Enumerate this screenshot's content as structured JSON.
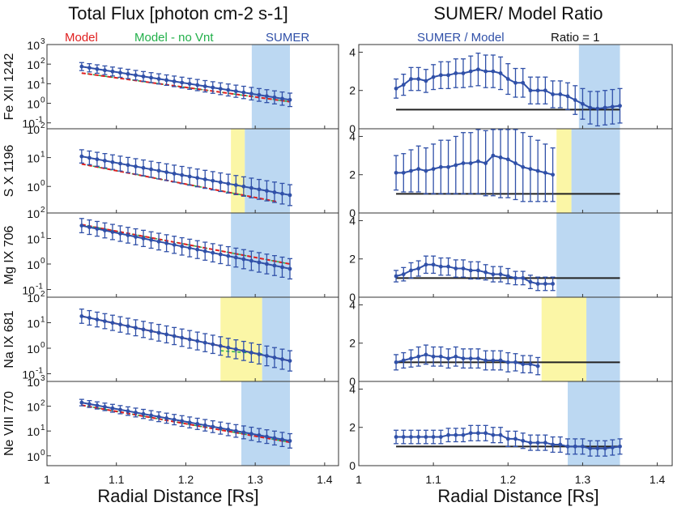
{
  "titles": {
    "left": "Total Flux [photon cm-2 s-1]",
    "right": "SUMER/ Model Ratio"
  },
  "legend_left": {
    "model": "Model",
    "model_no_vnt": "Model - no Vnt",
    "sumer": "SUMER"
  },
  "legend_right": {
    "sumer_model": "SUMER / Model",
    "ratio1": "Ratio = 1"
  },
  "xaxis": {
    "label": "Radial Distance [Rs]",
    "ticks": [
      "1",
      "1.1",
      "1.2",
      "1.3",
      "1.4"
    ],
    "range": [
      1.0,
      1.42
    ]
  },
  "colors": {
    "model": "#e02020",
    "model_no_vnt": "#22b04a",
    "sumer": "#3050a8",
    "band_blue": "#bcd8f2",
    "band_yellow": "#fbf6a6",
    "ratio_line": "#222222"
  },
  "chart_data": [
    {
      "type": "line",
      "panel": "flux",
      "ion": "Fe XII 1242",
      "yscale": "log",
      "ylim": [
        0.05,
        1000
      ],
      "y_ticks": [
        "10^3",
        "10^2",
        "10^1",
        "10^0",
        "10^-1"
      ],
      "bands": [
        {
          "color": "blue",
          "x": [
            1.295,
            1.35
          ]
        }
      ],
      "model": {
        "x": [
          1.05,
          1.35
        ],
        "y": [
          35,
          1.2
        ]
      },
      "model_no_vnt": {
        "x": [
          1.05,
          1.35
        ],
        "y": [
          35,
          1.2
        ]
      },
      "sumer": {
        "x0": 1.05,
        "x1": 1.35,
        "y0": 75,
        "y1": 1.5,
        "err_factor": 1.6,
        "n": 28
      }
    },
    {
      "type": "line",
      "panel": "ratio",
      "ion": "Fe XII 1242",
      "ylim": [
        0,
        4.4
      ],
      "y_ticks": [
        "4",
        "2",
        "0"
      ],
      "bands": [
        {
          "color": "blue",
          "x": [
            1.295,
            1.35
          ]
        }
      ],
      "ratio_line": {
        "x": [
          1.05,
          1.35
        ],
        "y": 1
      },
      "x": [
        1.05,
        1.06,
        1.07,
        1.08,
        1.09,
        1.1,
        1.11,
        1.12,
        1.13,
        1.14,
        1.15,
        1.16,
        1.17,
        1.18,
        1.19,
        1.2,
        1.21,
        1.22,
        1.23,
        1.24,
        1.25,
        1.26,
        1.27,
        1.28,
        1.29,
        1.3,
        1.31,
        1.32,
        1.33,
        1.34,
        1.35
      ],
      "y": [
        2.1,
        2.3,
        2.6,
        2.6,
        2.5,
        2.7,
        2.8,
        2.8,
        2.9,
        2.9,
        3.0,
        3.1,
        3.0,
        3.0,
        2.9,
        2.6,
        2.4,
        2.4,
        2.0,
        2.0,
        2.0,
        1.8,
        1.8,
        1.7,
        1.5,
        1.3,
        1.1,
        1.05,
        1.1,
        1.15,
        1.2
      ],
      "err": [
        0.5,
        0.55,
        0.6,
        0.6,
        0.6,
        0.65,
        0.7,
        0.7,
        0.75,
        0.75,
        0.8,
        0.85,
        0.85,
        0.85,
        0.85,
        0.8,
        0.75,
        0.75,
        0.7,
        0.7,
        0.7,
        0.7,
        0.7,
        0.7,
        0.75,
        0.8,
        0.85,
        0.9,
        0.9,
        0.9,
        0.9
      ]
    },
    {
      "type": "line",
      "panel": "flux",
      "ion": "S X 1196",
      "yscale": "log",
      "ylim": [
        0.12,
        100
      ],
      "y_ticks": [
        "10^2",
        "10^1",
        "10^0",
        "10^-1"
      ],
      "bands": [
        {
          "color": "yellow",
          "x": [
            1.265,
            1.285
          ]
        },
        {
          "color": "blue",
          "x": [
            1.285,
            1.35
          ]
        }
      ],
      "model": {
        "x": [
          1.05,
          1.33
        ],
        "y": [
          6,
          0.3
        ]
      },
      "model_no_vnt": {
        "x": [
          1.05,
          1.33
        ],
        "y": [
          6,
          0.3
        ]
      },
      "sumer": {
        "x0": 1.05,
        "x1": 1.35,
        "y0": 11,
        "y1": 0.5,
        "err_factor": 1.7,
        "n": 28
      }
    },
    {
      "type": "line",
      "panel": "ratio",
      "ion": "S X 1196",
      "ylim": [
        0,
        4.4
      ],
      "y_ticks": [
        "4",
        "2",
        "0"
      ],
      "bands": [
        {
          "color": "yellow",
          "x": [
            1.265,
            1.285
          ]
        },
        {
          "color": "blue",
          "x": [
            1.285,
            1.35
          ]
        }
      ],
      "ratio_line": {
        "x": [
          1.05,
          1.35
        ],
        "y": 1
      },
      "x": [
        1.05,
        1.06,
        1.07,
        1.08,
        1.09,
        1.1,
        1.11,
        1.12,
        1.13,
        1.14,
        1.15,
        1.16,
        1.17,
        1.18,
        1.19,
        1.2,
        1.21,
        1.22,
        1.23,
        1.24,
        1.25,
        1.26
      ],
      "y": [
        2.1,
        2.1,
        2.2,
        2.3,
        2.2,
        2.3,
        2.4,
        2.4,
        2.5,
        2.6,
        2.6,
        2.7,
        2.6,
        3.0,
        2.9,
        2.8,
        2.6,
        2.4,
        2.3,
        2.2,
        2.1,
        2.0
      ],
      "err": [
        0.9,
        1.0,
        1.1,
        1.2,
        1.2,
        1.3,
        1.4,
        1.4,
        1.5,
        1.6,
        1.6,
        1.7,
        1.7,
        2.1,
        2.1,
        2.0,
        1.9,
        1.8,
        1.7,
        1.6,
        1.5,
        1.4
      ]
    },
    {
      "type": "line",
      "panel": "flux",
      "ion": "Mg IX 706",
      "yscale": "log",
      "ylim": [
        0.05,
        100
      ],
      "y_ticks": [
        "10^2",
        "10^1",
        "10^0",
        "10^-1"
      ],
      "bands": [
        {
          "color": "blue",
          "x": [
            1.265,
            1.35
          ]
        }
      ],
      "model": {
        "x": [
          1.05,
          1.35
        ],
        "y": [
          35,
          1.0
        ]
      },
      "model_no_vnt": {
        "x": [
          1.05,
          1.35
        ],
        "y": [
          35,
          1.0
        ]
      },
      "sumer": {
        "x0": 1.05,
        "x1": 1.35,
        "y0": 32,
        "y1": 0.65,
        "err_factor": 1.9,
        "n": 28
      }
    },
    {
      "type": "line",
      "panel": "ratio",
      "ion": "Mg IX 706",
      "ylim": [
        0,
        4.4
      ],
      "y_ticks": [
        "4",
        "2",
        "0"
      ],
      "bands": [
        {
          "color": "blue",
          "x": [
            1.265,
            1.35
          ]
        }
      ],
      "ratio_line": {
        "x": [
          1.05,
          1.35
        ],
        "y": 1
      },
      "x": [
        1.05,
        1.06,
        1.07,
        1.08,
        1.09,
        1.1,
        1.11,
        1.12,
        1.13,
        1.14,
        1.15,
        1.16,
        1.17,
        1.18,
        1.19,
        1.2,
        1.21,
        1.22,
        1.23,
        1.24,
        1.25,
        1.26
      ],
      "y": [
        1.1,
        1.2,
        1.4,
        1.5,
        1.7,
        1.7,
        1.6,
        1.6,
        1.5,
        1.5,
        1.4,
        1.4,
        1.3,
        1.2,
        1.2,
        1.1,
        1.0,
        1.0,
        0.8,
        0.7,
        0.7,
        0.7
      ],
      "err": [
        0.3,
        0.35,
        0.4,
        0.4,
        0.45,
        0.45,
        0.45,
        0.45,
        0.45,
        0.45,
        0.45,
        0.45,
        0.4,
        0.4,
        0.4,
        0.4,
        0.35,
        0.35,
        0.35,
        0.35,
        0.35,
        0.35
      ]
    },
    {
      "type": "line",
      "panel": "flux",
      "ion": "Na IX 681",
      "yscale": "log",
      "ylim": [
        0.05,
        100
      ],
      "y_ticks": [
        "10^2",
        "10^1",
        "10^0",
        "10^-1"
      ],
      "bands": [
        {
          "color": "yellow",
          "x": [
            1.25,
            1.31
          ]
        },
        {
          "color": "blue",
          "x": [
            1.31,
            1.35
          ]
        }
      ],
      "model": {
        "x": [
          1.05,
          1.35
        ],
        "y": [
          18,
          0.32
        ]
      },
      "model_no_vnt": {
        "x": [
          1.25,
          1.31
        ],
        "y": [
          0.8,
          0.6
        ]
      },
      "sumer": {
        "x0": 1.05,
        "x1": 1.35,
        "y0": 18,
        "y1": 0.32,
        "err_factor": 1.9,
        "n": 28
      }
    },
    {
      "type": "line",
      "panel": "ratio",
      "ion": "Na IX 681",
      "ylim": [
        0,
        4.4
      ],
      "y_ticks": [
        "4",
        "2",
        "0"
      ],
      "bands": [
        {
          "color": "yellow",
          "x": [
            1.245,
            1.305
          ]
        },
        {
          "color": "blue",
          "x": [
            1.305,
            1.35
          ]
        }
      ],
      "ratio_line": {
        "x": [
          1.05,
          1.35
        ],
        "y": 1
      },
      "x": [
        1.05,
        1.06,
        1.07,
        1.08,
        1.09,
        1.1,
        1.11,
        1.12,
        1.13,
        1.14,
        1.15,
        1.16,
        1.17,
        1.18,
        1.19,
        1.2,
        1.21,
        1.22,
        1.23,
        1.24
      ],
      "y": [
        1.0,
        1.1,
        1.2,
        1.3,
        1.4,
        1.3,
        1.3,
        1.2,
        1.3,
        1.2,
        1.2,
        1.2,
        1.1,
        1.1,
        1.1,
        1.0,
        1.0,
        0.9,
        0.9,
        0.8
      ],
      "err": [
        0.4,
        0.4,
        0.45,
        0.5,
        0.5,
        0.5,
        0.5,
        0.5,
        0.5,
        0.5,
        0.5,
        0.5,
        0.5,
        0.5,
        0.5,
        0.5,
        0.45,
        0.45,
        0.45,
        0.45
      ]
    },
    {
      "type": "line",
      "panel": "flux",
      "ion": "Ne VIII 770",
      "yscale": "log",
      "ylim": [
        0.4,
        1000
      ],
      "y_ticks": [
        "10^3",
        "10^2",
        "10^1",
        "10^0"
      ],
      "bands": [
        {
          "color": "blue",
          "x": [
            1.28,
            1.35
          ]
        }
      ],
      "model": {
        "x": [
          1.05,
          1.35
        ],
        "y": [
          110,
          3.5
        ]
      },
      "model_no_vnt": {
        "x": [
          1.05,
          1.35
        ],
        "y": [
          110,
          3.5
        ]
      },
      "sumer": {
        "x0": 1.05,
        "x1": 1.35,
        "y0": 140,
        "y1": 4.0,
        "err_factor": 1.35,
        "n": 28
      }
    },
    {
      "type": "line",
      "panel": "ratio",
      "ion": "Ne VIII 770",
      "ylim": [
        0,
        4.4
      ],
      "y_ticks": [
        "4",
        "2",
        "0"
      ],
      "bands": [
        {
          "color": "blue",
          "x": [
            1.28,
            1.35
          ]
        }
      ],
      "ratio_line": {
        "x": [
          1.05,
          1.35
        ],
        "y": 1
      },
      "x": [
        1.05,
        1.06,
        1.07,
        1.08,
        1.09,
        1.1,
        1.11,
        1.12,
        1.13,
        1.14,
        1.15,
        1.16,
        1.17,
        1.18,
        1.19,
        1.2,
        1.21,
        1.22,
        1.23,
        1.24,
        1.25,
        1.26,
        1.27,
        1.28,
        1.29,
        1.3,
        1.31,
        1.32,
        1.33,
        1.34,
        1.35
      ],
      "y": [
        1.5,
        1.5,
        1.5,
        1.5,
        1.5,
        1.5,
        1.5,
        1.6,
        1.6,
        1.6,
        1.7,
        1.7,
        1.7,
        1.6,
        1.6,
        1.4,
        1.4,
        1.3,
        1.2,
        1.2,
        1.2,
        1.1,
        1.1,
        1.0,
        1.0,
        1.0,
        0.9,
        0.9,
        0.9,
        0.95,
        1.0
      ],
      "err": [
        0.35,
        0.35,
        0.35,
        0.35,
        0.35,
        0.35,
        0.35,
        0.35,
        0.35,
        0.35,
        0.4,
        0.4,
        0.4,
        0.4,
        0.4,
        0.4,
        0.4,
        0.4,
        0.4,
        0.4,
        0.4,
        0.4,
        0.4,
        0.4,
        0.4,
        0.4,
        0.4,
        0.4,
        0.4,
        0.4,
        0.4
      ]
    }
  ]
}
